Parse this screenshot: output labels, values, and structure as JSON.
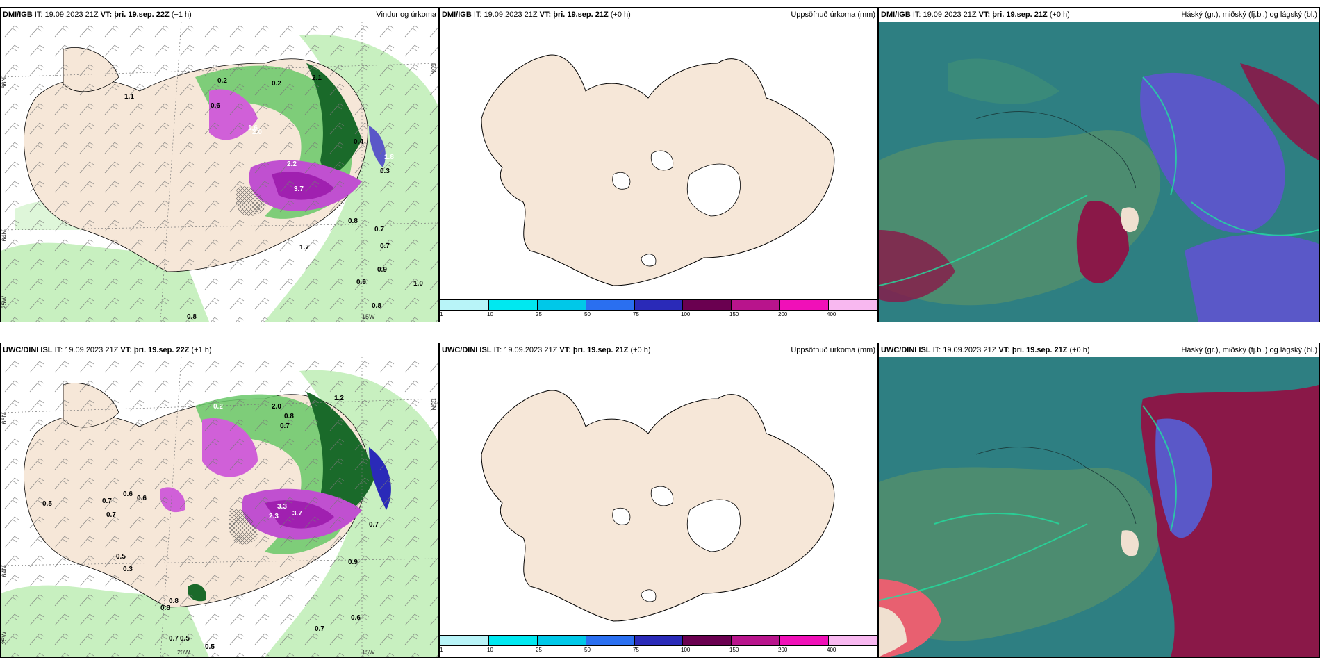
{
  "rows": [
    {
      "panel1": {
        "model": "DMI/IGB",
        "it": "IT: 19.09.2023 21Z",
        "vt_label": "VT:",
        "vt": "þri. 19.sep. 22Z",
        "lead": "(+1 h)",
        "title": "Vindur og úrkoma",
        "lat_ticks": [
          "66N",
          "64N",
          "65N"
        ],
        "lon_ticks": [
          "25W",
          "15W"
        ],
        "values": [
          "1.1",
          "0.2",
          "0.2",
          "0.6",
          "2.1",
          "1.6",
          "2.0",
          "0.4",
          "0.3",
          "1.8",
          "2.2",
          "0.8",
          "0.7",
          "0.7",
          "0.9",
          "0.9",
          "1.0",
          "0.8",
          "0.8",
          "1.7",
          "3.7"
        ]
      },
      "panel2": {
        "model": "DMI/IGB",
        "it": "IT: 19.09.2023 21Z",
        "vt_label": "VT:",
        "vt": "þri. 19.sep. 21Z",
        "lead": "(+0 h)",
        "title": "Uppsöfnuð úrkoma (mm)"
      },
      "panel3": {
        "model": "DMI/IGB",
        "it": "IT: 19.09.2023 21Z",
        "vt_label": "VT:",
        "vt": "þri. 19.sep. 21Z",
        "lead": "(+0 h)",
        "title": "Háský (gr.), miðský (fj.bl.) og lágský (bl.)"
      }
    },
    {
      "panel1": {
        "model": "UWC/DINI ISL",
        "it": "IT: 19.09.2023 21Z",
        "vt_label": "VT:",
        "vt": "þri. 19.sep. 22Z",
        "lead": "(+1 h)",
        "title": "",
        "lat_ticks": [
          "66N",
          "64N",
          "65N"
        ],
        "lon_ticks": [
          "25W",
          "20W",
          "15W"
        ],
        "values": [
          "0.2",
          "2.0",
          "0.8",
          "0.7",
          "0.5",
          "0.6",
          "0.6",
          "0.7",
          "0.7",
          "0.5",
          "0.3",
          "3.3",
          "2.3",
          "3.7",
          "0.7",
          "0.9",
          "0.8",
          "0.8",
          "0.6",
          "0.7",
          "0.7",
          "0.5",
          "0.5",
          "1.2"
        ]
      },
      "panel2": {
        "model": "UWC/DINI ISL",
        "it": "IT: 19.09.2023 21Z",
        "vt_label": "VT:",
        "vt": "þri. 19.sep. 21Z",
        "lead": "(+0 h)",
        "title": "Uppsöfnuð úrkoma (mm)"
      },
      "panel3": {
        "model": "UWC/DINI ISL",
        "it": "IT: 19.09.2023 21Z",
        "vt_label": "VT:",
        "vt": "þri. 19.sep. 21Z",
        "lead": "(+0 h)",
        "title": "Háský (gr.), miðský (fj.bl.) og lágský (bl.)"
      }
    }
  ],
  "legend": {
    "labels": [
      "1",
      "10",
      "25",
      "50",
      "75",
      "100",
      "150",
      "200",
      "400"
    ],
    "colors": [
      "#b8f4f8",
      "#00e8f0",
      "#00c8e8",
      "#2a6ff0",
      "#2a2ab8",
      "#6a0050",
      "#b8148c",
      "#f010b8",
      "#f8b8f0"
    ]
  },
  "colors": {
    "land": "#f6e7d8",
    "green_light": "#c8f0c0",
    "green_mid": "#68c868",
    "green_dark": "#1a6a2a",
    "magenta": "#d060d8",
    "purple": "#a020b0",
    "cloud_teal": "#2e7f82",
    "cloud_green": "#4c8c70",
    "cloud_blue": "#5a58c8",
    "cloud_red": "#8a1848"
  }
}
